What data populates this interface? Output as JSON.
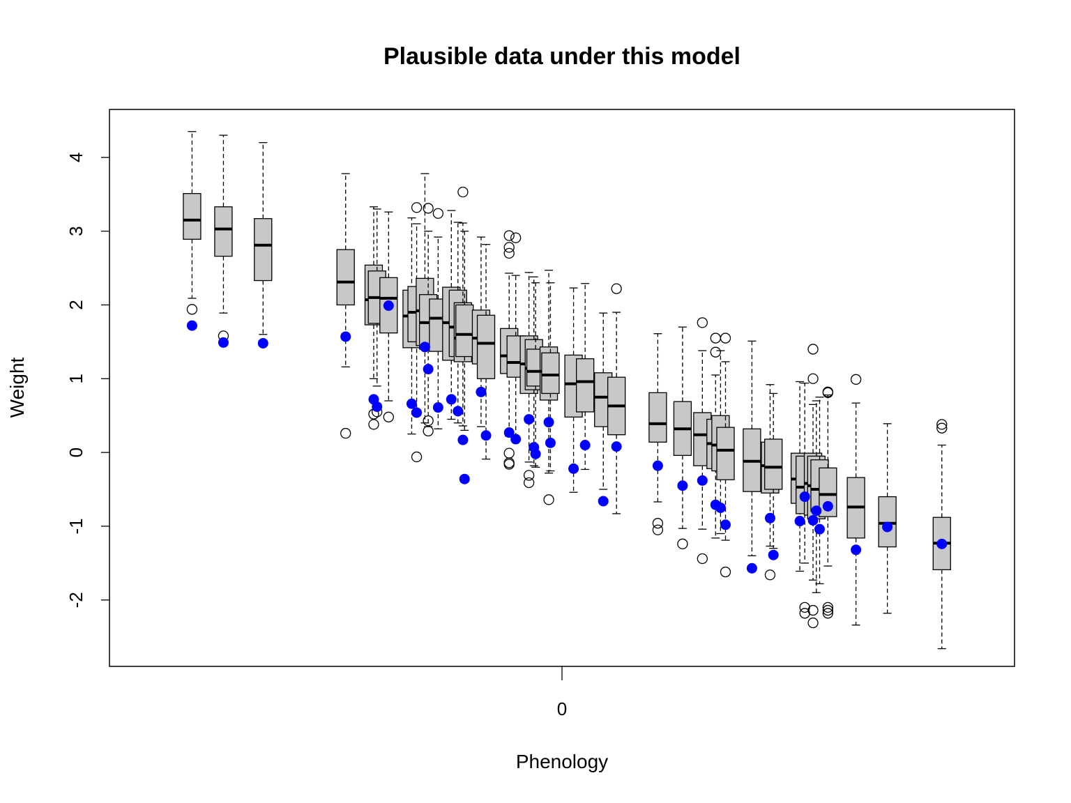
{
  "chart_data": {
    "type": "box",
    "title": "Plausible data under this model",
    "xlabel": "Phenology",
    "ylabel": "Weight",
    "x_ticks": [
      {
        "value": 0,
        "label": "0"
      }
    ],
    "y_ticks": [
      {
        "value": -2,
        "label": "-2"
      },
      {
        "value": -1,
        "label": "-1"
      },
      {
        "value": 0,
        "label": "0"
      },
      {
        "value": 1,
        "label": "1"
      },
      {
        "value": 2,
        "label": "2"
      },
      {
        "value": 3,
        "label": "3"
      },
      {
        "value": 4,
        "label": "4"
      }
    ],
    "xlim": [
      -2.74,
      2.74
    ],
    "ylim": [
      -2.9,
      4.65
    ],
    "grid": false,
    "colors": {
      "box_fill": "#c8c8c8",
      "observed_point": "#0000ff",
      "outlier": "#000000"
    },
    "boxes": [
      {
        "x": -2.24,
        "whisker_low": 2.09,
        "q1": 2.89,
        "median": 3.15,
        "q3": 3.51,
        "whisker_high": 4.35,
        "outliers": [
          1.94
        ],
        "observed": 1.72
      },
      {
        "x": -2.05,
        "whisker_low": 1.89,
        "q1": 2.66,
        "median": 3.03,
        "q3": 3.33,
        "whisker_high": 4.3,
        "outliers": [
          1.58
        ],
        "observed": 1.49
      },
      {
        "x": -1.81,
        "whisker_low": 1.6,
        "q1": 2.33,
        "median": 2.81,
        "q3": 3.17,
        "whisker_high": 4.2,
        "outliers": [],
        "observed": 1.48
      },
      {
        "x": -1.31,
        "whisker_low": 1.16,
        "q1": 2.0,
        "median": 2.31,
        "q3": 2.75,
        "whisker_high": 3.78,
        "outliers": [
          0.26
        ],
        "observed": 1.57
      },
      {
        "x": -1.14,
        "whisker_low": 1.0,
        "q1": 1.73,
        "median": 2.07,
        "q3": 2.54,
        "whisker_high": 3.33,
        "outliers": [
          0.52,
          0.38
        ],
        "observed": 0.72
      },
      {
        "x": -1.12,
        "whisker_low": 0.9,
        "q1": 1.75,
        "median": 2.1,
        "q3": 2.46,
        "whisker_high": 3.3,
        "outliers": [
          0.55
        ],
        "observed": 0.62
      },
      {
        "x": -1.05,
        "whisker_low": 0.7,
        "q1": 1.62,
        "median": 2.09,
        "q3": 2.37,
        "whisker_high": 3.26,
        "outliers": [
          0.48
        ],
        "observed": 1.99
      },
      {
        "x": -0.91,
        "whisker_low": 0.25,
        "q1": 1.42,
        "median": 1.85,
        "q3": 2.2,
        "whisker_high": 3.18,
        "outliers": [],
        "observed": 0.66
      },
      {
        "x": -0.88,
        "whisker_low": 0.5,
        "q1": 1.5,
        "median": 1.9,
        "q3": 2.25,
        "whisker_high": 3.1,
        "outliers": [
          3.32,
          -0.06
        ],
        "observed": 0.54
      },
      {
        "x": -0.83,
        "whisker_low": 0.4,
        "q1": 1.45,
        "median": 1.92,
        "q3": 2.36,
        "whisker_high": 3.78,
        "outliers": [],
        "observed": 1.43
      },
      {
        "x": -0.81,
        "whisker_low": 0.35,
        "q1": 1.4,
        "median": 1.76,
        "q3": 2.14,
        "whisker_high": 3.0,
        "outliers": [
          3.31,
          0.43,
          0.29
        ],
        "observed": 1.13
      },
      {
        "x": -0.75,
        "whisker_low": 0.32,
        "q1": 1.37,
        "median": 1.82,
        "q3": 2.08,
        "whisker_high": 2.92,
        "outliers": [
          3.24
        ],
        "observed": 0.61
      },
      {
        "x": -0.67,
        "whisker_low": 0.45,
        "q1": 1.25,
        "median": 1.76,
        "q3": 2.24,
        "whisker_high": 3.28,
        "outliers": [],
        "observed": 0.72
      },
      {
        "x": -0.63,
        "whisker_low": 0.4,
        "q1": 1.3,
        "median": 1.7,
        "q3": 2.2,
        "whisker_high": 3.12,
        "outliers": [],
        "observed": 0.56
      },
      {
        "x": -0.6,
        "whisker_low": 0.36,
        "q1": 1.23,
        "median": 1.55,
        "q3": 2.03,
        "whisker_high": 3.11,
        "outliers": [
          3.53
        ],
        "observed": 0.17
      },
      {
        "x": -0.59,
        "whisker_low": 0.3,
        "q1": 1.3,
        "median": 1.6,
        "q3": 2.0,
        "whisker_high": 3.0,
        "outliers": [],
        "observed": -0.36
      },
      {
        "x": -0.49,
        "whisker_low": 0.35,
        "q1": 1.2,
        "median": 1.55,
        "q3": 1.93,
        "whisker_high": 2.92,
        "outliers": [],
        "observed": 0.82
      },
      {
        "x": -0.46,
        "whisker_low": -0.09,
        "q1": 1.0,
        "median": 1.48,
        "q3": 1.86,
        "whisker_high": 2.82,
        "outliers": [],
        "observed": 0.23
      },
      {
        "x": -0.32,
        "whisker_low": 0.22,
        "q1": 1.07,
        "median": 1.31,
        "q3": 1.68,
        "whisker_high": 2.43,
        "outliers": [
          2.94,
          2.78,
          2.7,
          -0.01,
          -0.14,
          -0.16
        ],
        "observed": 0.27
      },
      {
        "x": -0.28,
        "whisker_low": 0.18,
        "q1": 1.02,
        "median": 1.22,
        "q3": 1.58,
        "whisker_high": 2.4,
        "outliers": [
          2.91
        ],
        "observed": 0.18
      },
      {
        "x": -0.2,
        "whisker_low": -0.13,
        "q1": 0.8,
        "median": 1.2,
        "q3": 1.58,
        "whisker_high": 2.44,
        "outliers": [
          -0.31,
          -0.41
        ],
        "observed": 0.45
      },
      {
        "x": -0.17,
        "whisker_low": -0.18,
        "q1": 0.85,
        "median": 1.14,
        "q3": 1.53,
        "whisker_high": 2.38,
        "outliers": [],
        "observed": 0.07
      },
      {
        "x": -0.16,
        "whisker_low": -0.2,
        "q1": 0.9,
        "median": 1.1,
        "q3": 1.4,
        "whisker_high": 2.3,
        "outliers": [],
        "observed": -0.02
      },
      {
        "x": -0.08,
        "whisker_low": -0.28,
        "q1": 0.71,
        "median": 1.1,
        "q3": 1.43,
        "whisker_high": 2.47,
        "outliers": [
          -0.64
        ],
        "observed": 0.41
      },
      {
        "x": -0.07,
        "whisker_low": -0.25,
        "q1": 0.8,
        "median": 1.05,
        "q3": 1.35,
        "whisker_high": 2.3,
        "outliers": [],
        "observed": 0.13
      },
      {
        "x": 0.07,
        "whisker_low": -0.54,
        "q1": 0.48,
        "median": 0.93,
        "q3": 1.32,
        "whisker_high": 2.23,
        "outliers": [],
        "observed": -0.22
      },
      {
        "x": 0.14,
        "whisker_low": -0.23,
        "q1": 0.55,
        "median": 0.96,
        "q3": 1.27,
        "whisker_high": 2.29,
        "outliers": [],
        "observed": 0.1
      },
      {
        "x": 0.25,
        "whisker_low": -0.5,
        "q1": 0.35,
        "median": 0.75,
        "q3": 1.08,
        "whisker_high": 1.89,
        "outliers": [],
        "observed": -0.66
      },
      {
        "x": 0.33,
        "whisker_low": -0.83,
        "q1": 0.24,
        "median": 0.63,
        "q3": 1.02,
        "whisker_high": 1.9,
        "outliers": [
          2.22
        ],
        "observed": 0.08
      },
      {
        "x": 0.58,
        "whisker_low": -0.67,
        "q1": 0.14,
        "median": 0.39,
        "q3": 0.81,
        "whisker_high": 1.61,
        "outliers": [
          -0.96,
          -1.05
        ],
        "observed": -0.18
      },
      {
        "x": 0.73,
        "whisker_low": -1.03,
        "q1": -0.04,
        "median": 0.32,
        "q3": 0.69,
        "whisker_high": 1.7,
        "outliers": [
          -1.24
        ],
        "observed": -0.45
      },
      {
        "x": 0.85,
        "whisker_low": -1.04,
        "q1": -0.18,
        "median": 0.24,
        "q3": 0.54,
        "whisker_high": 1.38,
        "outliers": [
          1.76,
          -1.44
        ],
        "observed": -0.38
      },
      {
        "x": 0.93,
        "whisker_low": -1.16,
        "q1": -0.22,
        "median": 0.12,
        "q3": 0.45,
        "whisker_high": 1.05,
        "outliers": [
          1.55,
          1.36
        ],
        "observed": -0.71
      },
      {
        "x": 0.96,
        "whisker_low": -1.1,
        "q1": -0.25,
        "median": 0.1,
        "q3": 0.5,
        "whisker_high": 1.38,
        "outliers": [],
        "observed": -0.75
      },
      {
        "x": 0.99,
        "whisker_low": -1.19,
        "q1": -0.37,
        "median": 0.03,
        "q3": 0.34,
        "whisker_high": 1.23,
        "outliers": [
          1.55,
          -1.62
        ],
        "observed": -0.98
      },
      {
        "x": 1.15,
        "whisker_low": -1.4,
        "q1": -0.53,
        "median": -0.12,
        "q3": 0.32,
        "whisker_high": 1.51,
        "outliers": [],
        "observed": -1.57
      },
      {
        "x": 1.26,
        "whisker_low": -1.27,
        "q1": -0.55,
        "median": -0.18,
        "q3": 0.14,
        "whisker_high": 0.92,
        "outliers": [
          -1.66
        ],
        "observed": -0.89
      },
      {
        "x": 1.28,
        "whisker_low": -1.3,
        "q1": -0.5,
        "median": -0.2,
        "q3": 0.18,
        "whisker_high": 0.8,
        "outliers": [],
        "observed": -1.39
      },
      {
        "x": 1.44,
        "whisker_low": -1.61,
        "q1": -0.69,
        "median": -0.36,
        "q3": -0.01,
        "whisker_high": 0.96,
        "outliers": [],
        "observed": -0.93
      },
      {
        "x": 1.47,
        "whisker_low": -1.5,
        "q1": -0.83,
        "median": -0.47,
        "q3": -0.05,
        "whisker_high": 0.94,
        "outliers": [
          -2.1,
          -2.18
        ],
        "observed": -0.6
      },
      {
        "x": 1.52,
        "whisker_low": -1.73,
        "q1": -0.85,
        "median": -0.42,
        "q3": -0.01,
        "whisker_high": 0.65,
        "outliers": [
          1.4,
          1.0,
          -2.14,
          -2.31
        ],
        "observed": -0.92
      },
      {
        "x": 1.54,
        "whisker_low": -1.9,
        "q1": -0.9,
        "median": -0.45,
        "q3": -0.05,
        "whisker_high": 0.7,
        "outliers": [],
        "observed": -0.79
      },
      {
        "x": 1.56,
        "whisker_low": -1.78,
        "q1": -0.8,
        "median": -0.5,
        "q3": -0.1,
        "whisker_high": 0.75,
        "outliers": [],
        "observed": -1.04
      },
      {
        "x": 1.61,
        "whisker_low": -1.54,
        "q1": -0.87,
        "median": -0.57,
        "q3": -0.21,
        "whisker_high": 0.78,
        "outliers": [
          0.82,
          0.81,
          -2.1,
          -2.14,
          -2.18
        ],
        "observed": -0.73
      },
      {
        "x": 1.78,
        "whisker_low": -2.34,
        "q1": -1.16,
        "median": -0.74,
        "q3": -0.34,
        "whisker_high": 0.67,
        "outliers": [
          0.99
        ],
        "observed": -1.32
      },
      {
        "x": 1.97,
        "whisker_low": -2.18,
        "q1": -1.28,
        "median": -0.96,
        "q3": -0.6,
        "whisker_high": 0.39,
        "outliers": [],
        "observed": -1.01
      },
      {
        "x": 2.3,
        "whisker_low": -2.66,
        "q1": -1.59,
        "median": -1.23,
        "q3": -0.88,
        "whisker_high": 0.1,
        "outliers": [
          0.38,
          0.33
        ],
        "observed": -1.24
      }
    ]
  }
}
